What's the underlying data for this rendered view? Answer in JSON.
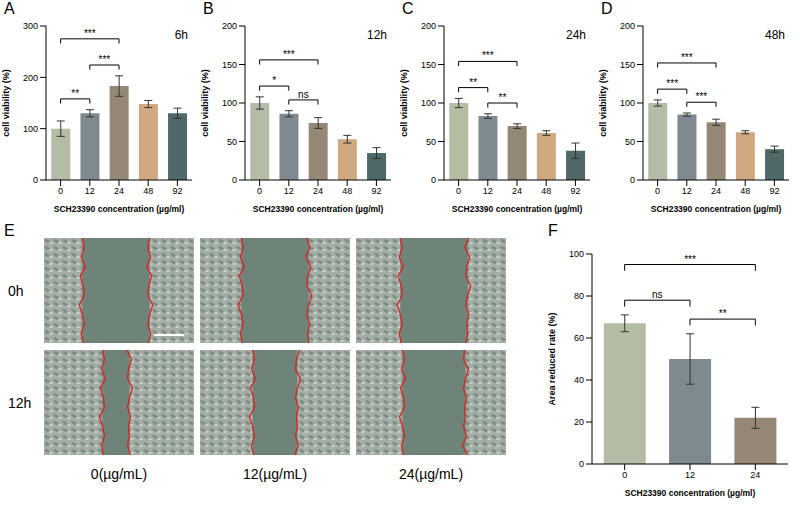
{
  "chart_data": [
    {
      "panel": "A",
      "type": "bar",
      "title": "6h",
      "x_label": "SCH23390 concentration (µg/ml)",
      "y_label": "cell viability (%)",
      "categories": [
        "0",
        "12",
        "24",
        "48",
        "92"
      ],
      "values": [
        100,
        130,
        183,
        148,
        130
      ],
      "errors": [
        15,
        7,
        20,
        7,
        10
      ],
      "colors": [
        "#b3bda5",
        "#7e8a8f",
        "#948776",
        "#d1a980",
        "#506868"
      ],
      "ylim": [
        0,
        300
      ],
      "yticks": [
        0,
        100,
        200,
        300
      ],
      "significance": [
        {
          "pair": [
            "0",
            "12"
          ],
          "label": "**"
        },
        {
          "pair": [
            "0",
            "24"
          ],
          "label": "***"
        },
        {
          "pair": [
            "12",
            "24"
          ],
          "label": "***"
        }
      ]
    },
    {
      "panel": "B",
      "type": "bar",
      "title": "12h",
      "x_label": "SCH23390 concentration (µg/ml)",
      "y_label": "cell viability (%)",
      "categories": [
        "0",
        "12",
        "24",
        "48",
        "92"
      ],
      "values": [
        100,
        86,
        74,
        53,
        35
      ],
      "errors": [
        8,
        4,
        7,
        5,
        7
      ],
      "colors": [
        "#b3bda5",
        "#7e8a8f",
        "#948776",
        "#d1a980",
        "#506868"
      ],
      "ylim": [
        0,
        200
      ],
      "yticks": [
        0,
        50,
        100,
        150,
        200
      ],
      "significance": [
        {
          "pair": [
            "0",
            "12"
          ],
          "label": "*"
        },
        {
          "pair": [
            "0",
            "24"
          ],
          "label": "***"
        },
        {
          "pair": [
            "12",
            "24"
          ],
          "label": "ns"
        }
      ]
    },
    {
      "panel": "C",
      "type": "bar",
      "title": "24h",
      "x_label": "SCH23390 concentration (µg/ml)",
      "y_label": "cell viability (%)",
      "categories": [
        "0",
        "12",
        "24",
        "48",
        "92"
      ],
      "values": [
        100,
        83,
        70,
        61,
        38
      ],
      "errors": [
        6,
        3,
        3,
        3,
        10
      ],
      "colors": [
        "#b3bda5",
        "#7e8a8f",
        "#948776",
        "#d1a980",
        "#506868"
      ],
      "ylim": [
        0,
        200
      ],
      "yticks": [
        0,
        50,
        100,
        150,
        200
      ],
      "significance": [
        {
          "pair": [
            "0",
            "12"
          ],
          "label": "**"
        },
        {
          "pair": [
            "0",
            "24"
          ],
          "label": "***"
        },
        {
          "pair": [
            "12",
            "24"
          ],
          "label": "**"
        }
      ]
    },
    {
      "panel": "D",
      "type": "bar",
      "title": "48h",
      "x_label": "SCH23390 concentration (µg/ml)",
      "y_label": "cell viability (%)",
      "categories": [
        "0",
        "12",
        "24",
        "48",
        "92"
      ],
      "values": [
        100,
        85,
        75,
        62,
        40
      ],
      "errors": [
        4,
        2,
        4,
        2,
        4
      ],
      "colors": [
        "#b3bda5",
        "#7e8a8f",
        "#948776",
        "#d1a980",
        "#506868"
      ],
      "ylim": [
        0,
        200
      ],
      "yticks": [
        0,
        50,
        100,
        150,
        200
      ],
      "significance": [
        {
          "pair": [
            "0",
            "12"
          ],
          "label": "***"
        },
        {
          "pair": [
            "0",
            "24"
          ],
          "label": "***"
        },
        {
          "pair": [
            "12",
            "24"
          ],
          "label": "***"
        }
      ]
    },
    {
      "panel": "F",
      "type": "bar",
      "x_label": "SCH23390 concentration (µg/ml)",
      "y_label": "Area reduced rate (%)",
      "categories": [
        "0",
        "12",
        "24"
      ],
      "values": [
        67,
        50,
        22
      ],
      "errors": [
        4,
        12,
        5
      ],
      "colors": [
        "#b3bda5",
        "#7e8a8f",
        "#948776"
      ],
      "ylim": [
        0,
        100
      ],
      "yticks": [
        0,
        20,
        40,
        60,
        80,
        100
      ],
      "significance": [
        {
          "pair": [
            "0",
            "12"
          ],
          "label": "ns"
        },
        {
          "pair": [
            "0",
            "24"
          ],
          "label": "***"
        },
        {
          "pair": [
            "12",
            "24"
          ],
          "label": "**"
        }
      ]
    }
  ],
  "images": {
    "panel": "E",
    "row_labels": [
      "0h",
      "12h"
    ],
    "column_labels": [
      "0(µg/mL)",
      "12(µg/mL)",
      "24(µg/mL)"
    ]
  }
}
